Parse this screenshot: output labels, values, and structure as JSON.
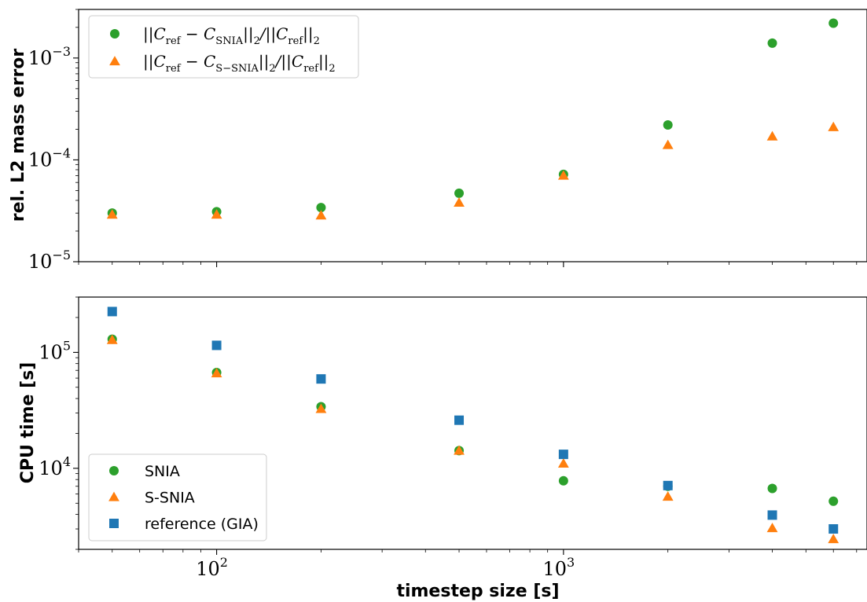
{
  "chart_data": [
    {
      "type": "scatter",
      "title": "",
      "xlabel": "",
      "ylabel": "rel. L2 mass error",
      "x_scale": "log",
      "y_scale": "log",
      "xlim": [
        40,
        7500
      ],
      "ylim": [
        1e-05,
        0.003
      ],
      "y_ticks": [
        {
          "value": 1e-05,
          "base": "10",
          "exp": "−5"
        },
        {
          "value": 0.0001,
          "base": "10",
          "exp": "−4"
        },
        {
          "value": 0.001,
          "base": "10",
          "exp": "−3"
        }
      ],
      "x": [
        50,
        100,
        200,
        500,
        1000,
        2000,
        4000,
        6000
      ],
      "legend_position": "top-left",
      "grid": false,
      "series": [
        {
          "name": "||C_ref − C_SNIA||_2/||C_ref||_2",
          "name_parts": {
            "pre": "||C",
            "sub1": "ref",
            "mid": " − C",
            "sub2": "SNIA",
            "post1": "||",
            "sub3": "2",
            "post2": "/||C",
            "sub4": "ref",
            "post3": "||",
            "sub5": "2"
          },
          "marker": "circle",
          "color": "#2ca02c",
          "values": [
            3e-05,
            3.1e-05,
            3.4e-05,
            4.7e-05,
            7.2e-05,
            0.00022,
            0.0014,
            0.0022
          ]
        },
        {
          "name": "||C_ref − C_S−SNIA||_2/||C_ref||_2",
          "name_parts": {
            "pre": "||C",
            "sub1": "ref",
            "mid": " − C",
            "sub2": "S−SNIA",
            "post1": "||",
            "sub3": "2",
            "post2": "/||C",
            "sub4": "ref",
            "post3": "||",
            "sub5": "2"
          },
          "marker": "triangle",
          "color": "#ff7f0e",
          "values": [
            2.9e-05,
            2.9e-05,
            2.85e-05,
            3.8e-05,
            7e-05,
            0.00014,
            0.00017,
            0.00021
          ]
        }
      ]
    },
    {
      "type": "scatter",
      "title": "",
      "xlabel": "timestep size [s]",
      "ylabel": "CPU time [s]",
      "x_scale": "log",
      "y_scale": "log",
      "xlim": [
        40,
        7500
      ],
      "ylim": [
        2000,
        300000
      ],
      "y_ticks": [
        {
          "value": 10000,
          "base": "10",
          "exp": "4"
        },
        {
          "value": 100000,
          "base": "10",
          "exp": "5"
        }
      ],
      "x_ticks": [
        {
          "value": 100,
          "base": "10",
          "exp": "2"
        },
        {
          "value": 1000,
          "base": "10",
          "exp": "3"
        }
      ],
      "x": [
        50,
        100,
        200,
        500,
        1000,
        2000,
        4000,
        6000
      ],
      "legend_position": "bottom-left",
      "grid": false,
      "series": [
        {
          "name": "SNIA",
          "marker": "circle",
          "color": "#2ca02c",
          "values": [
            130000,
            67000,
            34000,
            14200,
            7800,
            7000,
            6700,
            5200
          ]
        },
        {
          "name": "S-SNIA",
          "marker": "triangle",
          "color": "#ff7f0e",
          "values": [
            128000,
            66000,
            32500,
            14200,
            11000,
            5700,
            3050,
            2450
          ]
        },
        {
          "name": "reference (GIA)",
          "marker": "square",
          "color": "#1f77b4",
          "values": [
            225000,
            115000,
            59000,
            26000,
            13200,
            7100,
            3950,
            3000
          ]
        }
      ]
    }
  ]
}
